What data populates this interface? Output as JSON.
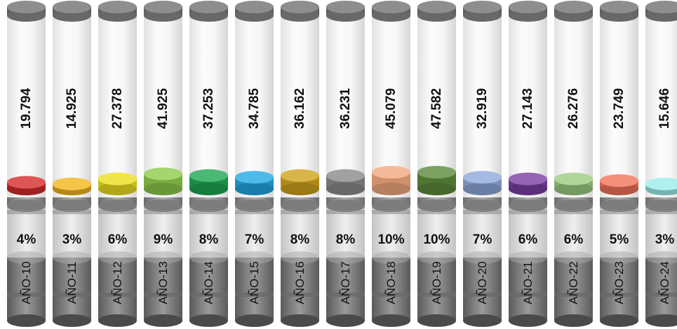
{
  "chart_data": {
    "type": "bar",
    "categories": [
      "AÑO-10",
      "AÑO-11",
      "AÑO-12",
      "AÑO-13",
      "AÑO-14",
      "AÑO-15",
      "AÑO-16",
      "AÑO-17",
      "AÑO-18",
      "AÑO-19",
      "AÑO-20",
      "AÑO-21",
      "AÑO-22",
      "AÑO-23",
      "AÑO-24"
    ],
    "value_labels": [
      "19.794",
      "14.925",
      "27.378",
      "41.925",
      "37.253",
      "34.785",
      "36.162",
      "36.231",
      "45.079",
      "47.582",
      "32.919",
      "27.143",
      "26.276",
      "23.749",
      "15.646"
    ],
    "values": [
      19.794,
      14.925,
      27.378,
      41.925,
      37.253,
      34.785,
      36.162,
      36.231,
      45.079,
      47.582,
      32.919,
      27.143,
      26.276,
      23.749,
      15.646
    ],
    "percent_labels": [
      "4%",
      "3%",
      "6%",
      "9%",
      "8%",
      "7%",
      "8%",
      "8%",
      "10%",
      "10%",
      "7%",
      "6%",
      "6%",
      "5%",
      "3%"
    ],
    "percents": [
      4,
      3,
      6,
      9,
      8,
      7,
      8,
      8,
      10,
      10,
      7,
      6,
      6,
      5,
      3
    ],
    "colors": [
      "#d42a2a",
      "#f2b51c",
      "#ecdf1e",
      "#8dca4a",
      "#1fa652",
      "#23a8e3",
      "#cfa21c",
      "#8a8a8a",
      "#f3a97f",
      "#5d8a3c",
      "#8fa8dc",
      "#7b3fa3",
      "#9ccc80",
      "#f1735a",
      "#9beeea"
    ],
    "title": "",
    "xlabel": "",
    "ylabel": ""
  }
}
